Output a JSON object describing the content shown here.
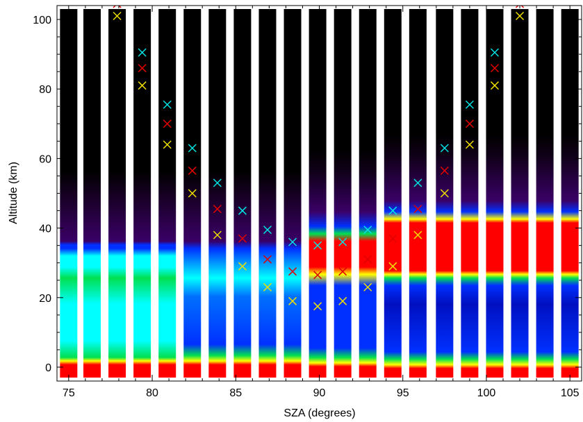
{
  "chart_data": {
    "type": "heatmap",
    "xlabel": "SZA (degrees)",
    "ylabel": "Altitude (km)",
    "xlim": [
      74.3,
      105.7
    ],
    "ylim": [
      -4,
      104
    ],
    "x_ticks": [
      "75",
      "80",
      "85",
      "90",
      "95",
      "100",
      "105"
    ],
    "y_ticks": [
      "0",
      "20",
      "40",
      "60",
      "80",
      "100"
    ],
    "sza_columns": [
      75.0,
      76.4,
      77.9,
      79.4,
      80.9,
      82.4,
      83.9,
      85.4,
      86.9,
      88.4,
      89.9,
      91.4,
      92.9,
      94.4,
      95.9,
      97.5,
      99.0,
      100.5,
      102.0,
      103.5,
      105.0
    ],
    "bar_bottom_km": -3,
    "bar_top_km": 103,
    "colors": {
      "black": "#000000",
      "red": "#ff0000",
      "yellow": "#ffff00",
      "green": "#00e050",
      "cyan": "#00ffff",
      "blue": "#0030ff",
      "purple": "#3a0066",
      "marker_cyan": "#00e5e5",
      "marker_red": "#e00000",
      "marker_yellow": "#f0e000"
    },
    "markers": {
      "cyan": [
        [
          79.4,
          90.5
        ],
        [
          80.9,
          75.5
        ],
        [
          82.4,
          63
        ],
        [
          83.9,
          53
        ],
        [
          85.4,
          45
        ],
        [
          86.9,
          39.5
        ],
        [
          88.4,
          36
        ],
        [
          89.9,
          35
        ],
        [
          91.4,
          36
        ],
        [
          92.9,
          39.5
        ],
        [
          94.4,
          45
        ],
        [
          95.9,
          53
        ],
        [
          97.5,
          63
        ],
        [
          99.0,
          75.5
        ],
        [
          100.5,
          90.5
        ]
      ],
      "red": [
        [
          77.9,
          104.5
        ],
        [
          79.4,
          86
        ],
        [
          80.9,
          70
        ],
        [
          82.4,
          56.5
        ],
        [
          83.9,
          45.5
        ],
        [
          85.4,
          37
        ],
        [
          86.9,
          31
        ],
        [
          88.4,
          27.5
        ],
        [
          89.9,
          26.5
        ],
        [
          91.4,
          27.5
        ],
        [
          92.9,
          31
        ],
        [
          94.4,
          37
        ],
        [
          95.9,
          45.5
        ],
        [
          97.5,
          56.5
        ],
        [
          99.0,
          70
        ],
        [
          100.5,
          86
        ],
        [
          102.0,
          104.5
        ]
      ],
      "yellow": [
        [
          77.9,
          101
        ],
        [
          79.4,
          81
        ],
        [
          80.9,
          64
        ],
        [
          82.4,
          50
        ],
        [
          83.9,
          38
        ],
        [
          85.4,
          29
        ],
        [
          86.9,
          23
        ],
        [
          88.4,
          19
        ],
        [
          89.9,
          17.5
        ],
        [
          91.4,
          19
        ],
        [
          92.9,
          23
        ],
        [
          94.4,
          29
        ],
        [
          95.9,
          38
        ],
        [
          97.5,
          50
        ],
        [
          99.0,
          64
        ],
        [
          100.5,
          81
        ],
        [
          102.0,
          101
        ]
      ]
    }
  }
}
